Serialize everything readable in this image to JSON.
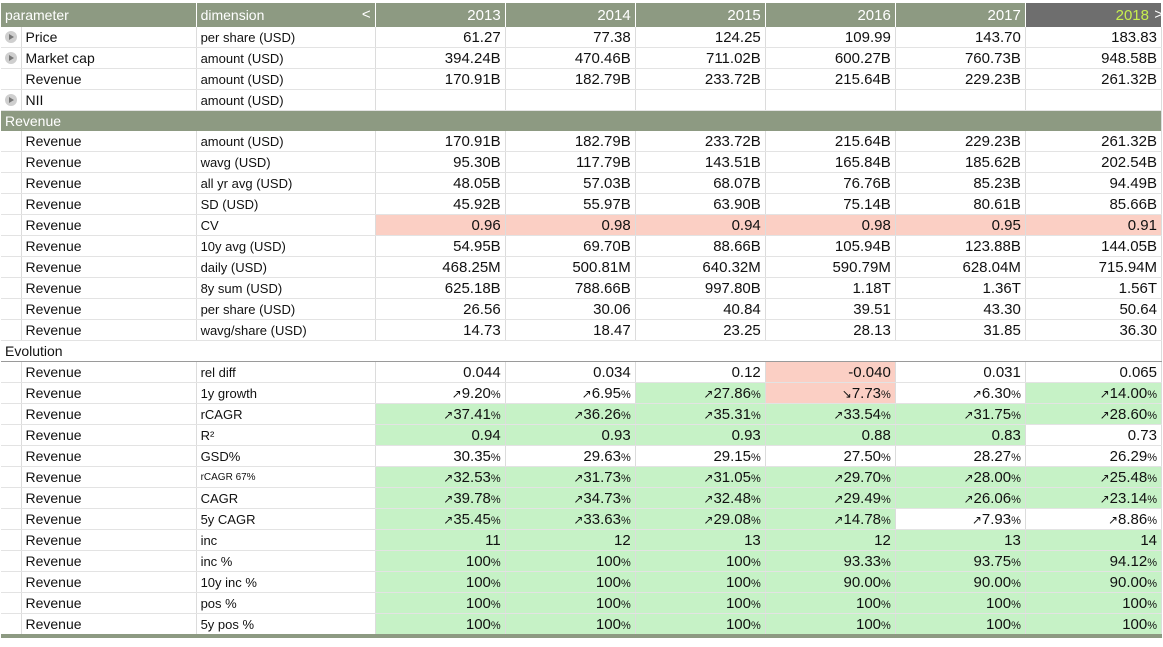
{
  "header": {
    "parameter": "parameter",
    "dimension": "dimension",
    "collapse_symbol": "<",
    "expand_symbol": ">",
    "years": [
      "2013",
      "2014",
      "2015",
      "2016",
      "2017",
      "2018"
    ]
  },
  "colors": {
    "header_bg": "#8d9a82",
    "selected_header_bg": "#6e6e6e",
    "selected_header_text": "#c7ef4e",
    "good": "#c6f2c6",
    "bad": "#fbcfc4"
  },
  "top_rows": [
    {
      "param": "Price",
      "dim": "per share (USD)",
      "expand": true,
      "cells": [
        {
          "t": "61.27"
        },
        {
          "t": "77.38"
        },
        {
          "t": "124.25"
        },
        {
          "t": "109.99"
        },
        {
          "t": "143.70"
        },
        {
          "t": "183.83"
        }
      ]
    },
    {
      "param": "Market cap",
      "dim": "amount (USD)",
      "expand": true,
      "cells": [
        {
          "t": "394.24B"
        },
        {
          "t": "470.46B"
        },
        {
          "t": "711.02B"
        },
        {
          "t": "600.27B"
        },
        {
          "t": "760.73B"
        },
        {
          "t": "948.58B"
        }
      ]
    },
    {
      "param": "Revenue",
      "dim": "amount (USD)",
      "expand": false,
      "cells": [
        {
          "t": "170.91B"
        },
        {
          "t": "182.79B"
        },
        {
          "t": "233.72B"
        },
        {
          "t": "215.64B"
        },
        {
          "t": "229.23B"
        },
        {
          "t": "261.32B"
        }
      ]
    },
    {
      "param": "NII",
      "dim": "amount (USD)",
      "expand": true,
      "cells": [
        {
          "t": ""
        },
        {
          "t": ""
        },
        {
          "t": ""
        },
        {
          "t": ""
        },
        {
          "t": ""
        },
        {
          "t": ""
        }
      ]
    }
  ],
  "section_revenue": {
    "title": "Revenue",
    "rows": [
      {
        "param": "Revenue",
        "dim": "amount (USD)",
        "cells": [
          {
            "t": "170.91B"
          },
          {
            "t": "182.79B"
          },
          {
            "t": "233.72B"
          },
          {
            "t": "215.64B"
          },
          {
            "t": "229.23B"
          },
          {
            "t": "261.32B"
          }
        ]
      },
      {
        "param": "Revenue",
        "dim": "wavg (USD)",
        "cells": [
          {
            "t": "95.30B"
          },
          {
            "t": "117.79B"
          },
          {
            "t": "143.51B"
          },
          {
            "t": "165.84B"
          },
          {
            "t": "185.62B"
          },
          {
            "t": "202.54B"
          }
        ]
      },
      {
        "param": "Revenue",
        "dim": "all yr avg (USD)",
        "cells": [
          {
            "t": "48.05B"
          },
          {
            "t": "57.03B"
          },
          {
            "t": "68.07B"
          },
          {
            "t": "76.76B"
          },
          {
            "t": "85.23B"
          },
          {
            "t": "94.49B"
          }
        ]
      },
      {
        "param": "Revenue",
        "dim": "SD (USD)",
        "cells": [
          {
            "t": "45.92B"
          },
          {
            "t": "55.97B"
          },
          {
            "t": "63.90B"
          },
          {
            "t": "75.14B"
          },
          {
            "t": "80.61B"
          },
          {
            "t": "85.66B"
          }
        ]
      },
      {
        "param": "Revenue",
        "dim": "CV",
        "cells": [
          {
            "t": "0.96",
            "c": "r"
          },
          {
            "t": "0.98",
            "c": "r"
          },
          {
            "t": "0.94",
            "c": "r"
          },
          {
            "t": "0.98",
            "c": "r"
          },
          {
            "t": "0.95",
            "c": "r"
          },
          {
            "t": "0.91",
            "c": "r"
          }
        ]
      },
      {
        "param": "Revenue",
        "dim": "10y avg (USD)",
        "cells": [
          {
            "t": "54.95B"
          },
          {
            "t": "69.70B"
          },
          {
            "t": "88.66B"
          },
          {
            "t": "105.94B"
          },
          {
            "t": "123.88B"
          },
          {
            "t": "144.05B"
          }
        ]
      },
      {
        "param": "Revenue",
        "dim": "daily (USD)",
        "cells": [
          {
            "t": "468.25M"
          },
          {
            "t": "500.81M"
          },
          {
            "t": "640.32M"
          },
          {
            "t": "590.79M"
          },
          {
            "t": "628.04M"
          },
          {
            "t": "715.94M"
          }
        ]
      },
      {
        "param": "Revenue",
        "dim": "8y sum (USD)",
        "cells": [
          {
            "t": "625.18B"
          },
          {
            "t": "788.66B"
          },
          {
            "t": "997.80B"
          },
          {
            "t": "1.18T"
          },
          {
            "t": "1.36T"
          },
          {
            "t": "1.56T"
          }
        ]
      },
      {
        "param": "Revenue",
        "dim": "per share (USD)",
        "cells": [
          {
            "t": "26.56"
          },
          {
            "t": "30.06"
          },
          {
            "t": "40.84"
          },
          {
            "t": "39.51"
          },
          {
            "t": "43.30"
          },
          {
            "t": "50.64"
          }
        ]
      },
      {
        "param": "Revenue",
        "dim": "wavg/share (USD)",
        "cells": [
          {
            "t": "14.73"
          },
          {
            "t": "18.47"
          },
          {
            "t": "23.25"
          },
          {
            "t": "28.13"
          },
          {
            "t": "31.85"
          },
          {
            "t": "36.30"
          }
        ]
      }
    ]
  },
  "section_evolution": {
    "title": "Evolution",
    "rows": [
      {
        "param": "Revenue",
        "dim": "rel diff",
        "cells": [
          {
            "t": "0.044"
          },
          {
            "t": "0.034"
          },
          {
            "t": "0.12"
          },
          {
            "t": "-0.040",
            "c": "r"
          },
          {
            "t": "0.031"
          },
          {
            "t": "0.065"
          }
        ]
      },
      {
        "param": "Revenue",
        "dim": "1y growth",
        "cells": [
          {
            "a": "↗",
            "t": "9.20",
            "p": "%"
          },
          {
            "a": "↗",
            "t": "6.95",
            "p": "%"
          },
          {
            "a": "↗",
            "t": "27.86",
            "p": "%",
            "c": "g"
          },
          {
            "a": "↘",
            "t": "7.73",
            "p": "%",
            "c": "r"
          },
          {
            "a": "↗",
            "t": "6.30",
            "p": "%"
          },
          {
            "a": "↗",
            "t": "14.00",
            "p": "%",
            "c": "g"
          }
        ]
      },
      {
        "param": "Revenue",
        "dim": "rCAGR",
        "cells": [
          {
            "a": "↗",
            "t": "37.41",
            "p": "%",
            "c": "g"
          },
          {
            "a": "↗",
            "t": "36.26",
            "p": "%",
            "c": "g"
          },
          {
            "a": "↗",
            "t": "35.31",
            "p": "%",
            "c": "g"
          },
          {
            "a": "↗",
            "t": "33.54",
            "p": "%",
            "c": "g"
          },
          {
            "a": "↗",
            "t": "31.75",
            "p": "%",
            "c": "g"
          },
          {
            "a": "↗",
            "t": "28.60",
            "p": "%",
            "c": "g"
          }
        ]
      },
      {
        "param": "Revenue",
        "dim": "R²",
        "cells": [
          {
            "t": "0.94",
            "c": "g"
          },
          {
            "t": "0.93",
            "c": "g"
          },
          {
            "t": "0.93",
            "c": "g"
          },
          {
            "t": "0.88",
            "c": "g"
          },
          {
            "t": "0.83",
            "c": "g"
          },
          {
            "t": "0.73"
          }
        ]
      },
      {
        "param": "Revenue",
        "dim": "GSD%",
        "cells": [
          {
            "t": "30.35",
            "p": "%"
          },
          {
            "t": "29.63",
            "p": "%"
          },
          {
            "t": "29.15",
            "p": "%"
          },
          {
            "t": "27.50",
            "p": "%"
          },
          {
            "t": "28.27",
            "p": "%"
          },
          {
            "t": "26.29",
            "p": "%"
          }
        ]
      },
      {
        "param": "Revenue",
        "dim": "rCAGR 67%",
        "small": true,
        "cells": [
          {
            "a": "↗",
            "t": "32.53",
            "p": "%",
            "c": "g"
          },
          {
            "a": "↗",
            "t": "31.73",
            "p": "%",
            "c": "g"
          },
          {
            "a": "↗",
            "t": "31.05",
            "p": "%",
            "c": "g"
          },
          {
            "a": "↗",
            "t": "29.70",
            "p": "%",
            "c": "g"
          },
          {
            "a": "↗",
            "t": "28.00",
            "p": "%",
            "c": "g"
          },
          {
            "a": "↗",
            "t": "25.48",
            "p": "%",
            "c": "g"
          }
        ]
      },
      {
        "param": "Revenue",
        "dim": "CAGR",
        "cells": [
          {
            "a": "↗",
            "t": "39.78",
            "p": "%",
            "c": "g"
          },
          {
            "a": "↗",
            "t": "34.73",
            "p": "%",
            "c": "g"
          },
          {
            "a": "↗",
            "t": "32.48",
            "p": "%",
            "c": "g"
          },
          {
            "a": "↗",
            "t": "29.49",
            "p": "%",
            "c": "g"
          },
          {
            "a": "↗",
            "t": "26.06",
            "p": "%",
            "c": "g"
          },
          {
            "a": "↗",
            "t": "23.14",
            "p": "%",
            "c": "g"
          }
        ]
      },
      {
        "param": "Revenue",
        "dim": "5y CAGR",
        "cells": [
          {
            "a": "↗",
            "t": "35.45",
            "p": "%",
            "c": "g"
          },
          {
            "a": "↗",
            "t": "33.63",
            "p": "%",
            "c": "g"
          },
          {
            "a": "↗",
            "t": "29.08",
            "p": "%",
            "c": "g"
          },
          {
            "a": "↗",
            "t": "14.78",
            "p": "%",
            "c": "g"
          },
          {
            "a": "↗",
            "t": "7.93",
            "p": "%"
          },
          {
            "a": "↗",
            "t": "8.86",
            "p": "%"
          }
        ]
      },
      {
        "param": "Revenue",
        "dim": "inc",
        "cells": [
          {
            "t": "11",
            "c": "g"
          },
          {
            "t": "12",
            "c": "g"
          },
          {
            "t": "13",
            "c": "g"
          },
          {
            "t": "12",
            "c": "g"
          },
          {
            "t": "13",
            "c": "g"
          },
          {
            "t": "14",
            "c": "g"
          }
        ]
      },
      {
        "param": "Revenue",
        "dim": "inc %",
        "cells": [
          {
            "t": "100",
            "p": "%",
            "c": "g"
          },
          {
            "t": "100",
            "p": "%",
            "c": "g"
          },
          {
            "t": "100",
            "p": "%",
            "c": "g"
          },
          {
            "t": "93.33",
            "p": "%",
            "c": "g"
          },
          {
            "t": "93.75",
            "p": "%",
            "c": "g"
          },
          {
            "t": "94.12",
            "p": "%",
            "c": "g"
          }
        ]
      },
      {
        "param": "Revenue",
        "dim": "10y inc %",
        "cells": [
          {
            "t": "100",
            "p": "%",
            "c": "g"
          },
          {
            "t": "100",
            "p": "%",
            "c": "g"
          },
          {
            "t": "100",
            "p": "%",
            "c": "g"
          },
          {
            "t": "90.00",
            "p": "%",
            "c": "g"
          },
          {
            "t": "90.00",
            "p": "%",
            "c": "g"
          },
          {
            "t": "90.00",
            "p": "%",
            "c": "g"
          }
        ]
      },
      {
        "param": "Revenue",
        "dim": "pos %",
        "cells": [
          {
            "t": "100",
            "p": "%",
            "c": "g"
          },
          {
            "t": "100",
            "p": "%",
            "c": "g"
          },
          {
            "t": "100",
            "p": "%",
            "c": "g"
          },
          {
            "t": "100",
            "p": "%",
            "c": "g"
          },
          {
            "t": "100",
            "p": "%",
            "c": "g"
          },
          {
            "t": "100",
            "p": "%",
            "c": "g"
          }
        ]
      },
      {
        "param": "Revenue",
        "dim": "5y pos %",
        "cells": [
          {
            "t": "100",
            "p": "%",
            "c": "g"
          },
          {
            "t": "100",
            "p": "%",
            "c": "g"
          },
          {
            "t": "100",
            "p": "%",
            "c": "g"
          },
          {
            "t": "100",
            "p": "%",
            "c": "g"
          },
          {
            "t": "100",
            "p": "%",
            "c": "g"
          },
          {
            "t": "100",
            "p": "%",
            "c": "g"
          }
        ]
      }
    ]
  }
}
